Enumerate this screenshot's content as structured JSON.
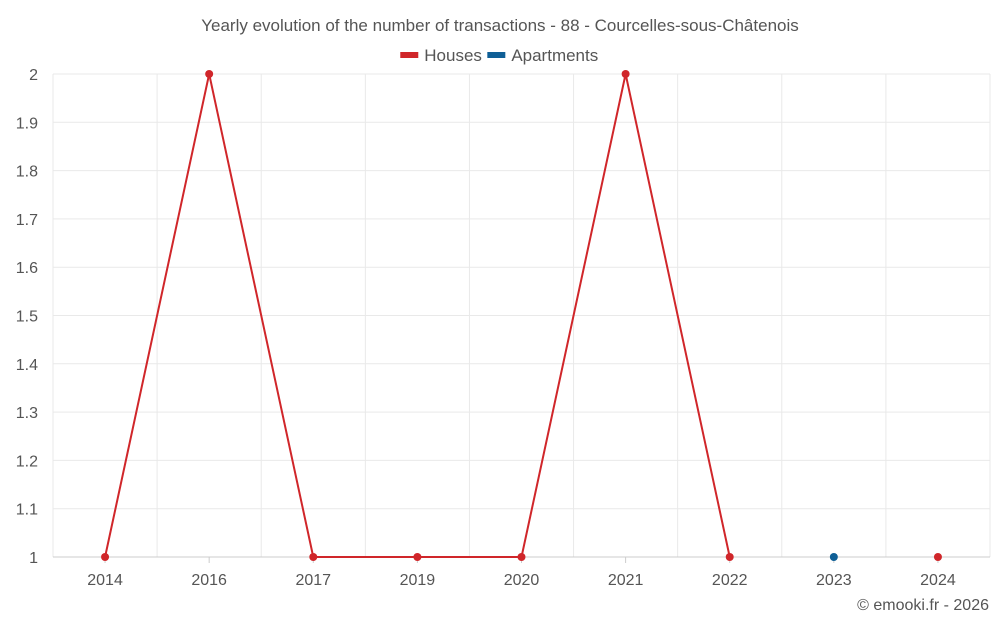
{
  "chart_data": {
    "type": "line",
    "title": "Yearly evolution of the number of transactions - 88 - Courcelles-sous-Châtenois",
    "categories": [
      "2014",
      "2016",
      "2017",
      "2019",
      "2020",
      "2021",
      "2022",
      "2023",
      "2024"
    ],
    "series": [
      {
        "name": "Houses",
        "color": "#d0262a",
        "values": [
          1,
          2,
          1,
          1,
          1,
          2,
          1,
          null,
          1
        ]
      },
      {
        "name": "Apartments",
        "color": "#0f5f96",
        "values": [
          null,
          null,
          null,
          null,
          null,
          null,
          null,
          1,
          null
        ]
      }
    ],
    "ylim": [
      1,
      2
    ],
    "yticks": [
      "1",
      "1.1",
      "1.2",
      "1.3",
      "1.4",
      "1.5",
      "1.6",
      "1.7",
      "1.8",
      "1.9",
      "2"
    ],
    "xlabel": "",
    "ylabel": "",
    "grid": true,
    "legend_position": "top-center"
  },
  "credit": "© emooki.fr - 2026"
}
